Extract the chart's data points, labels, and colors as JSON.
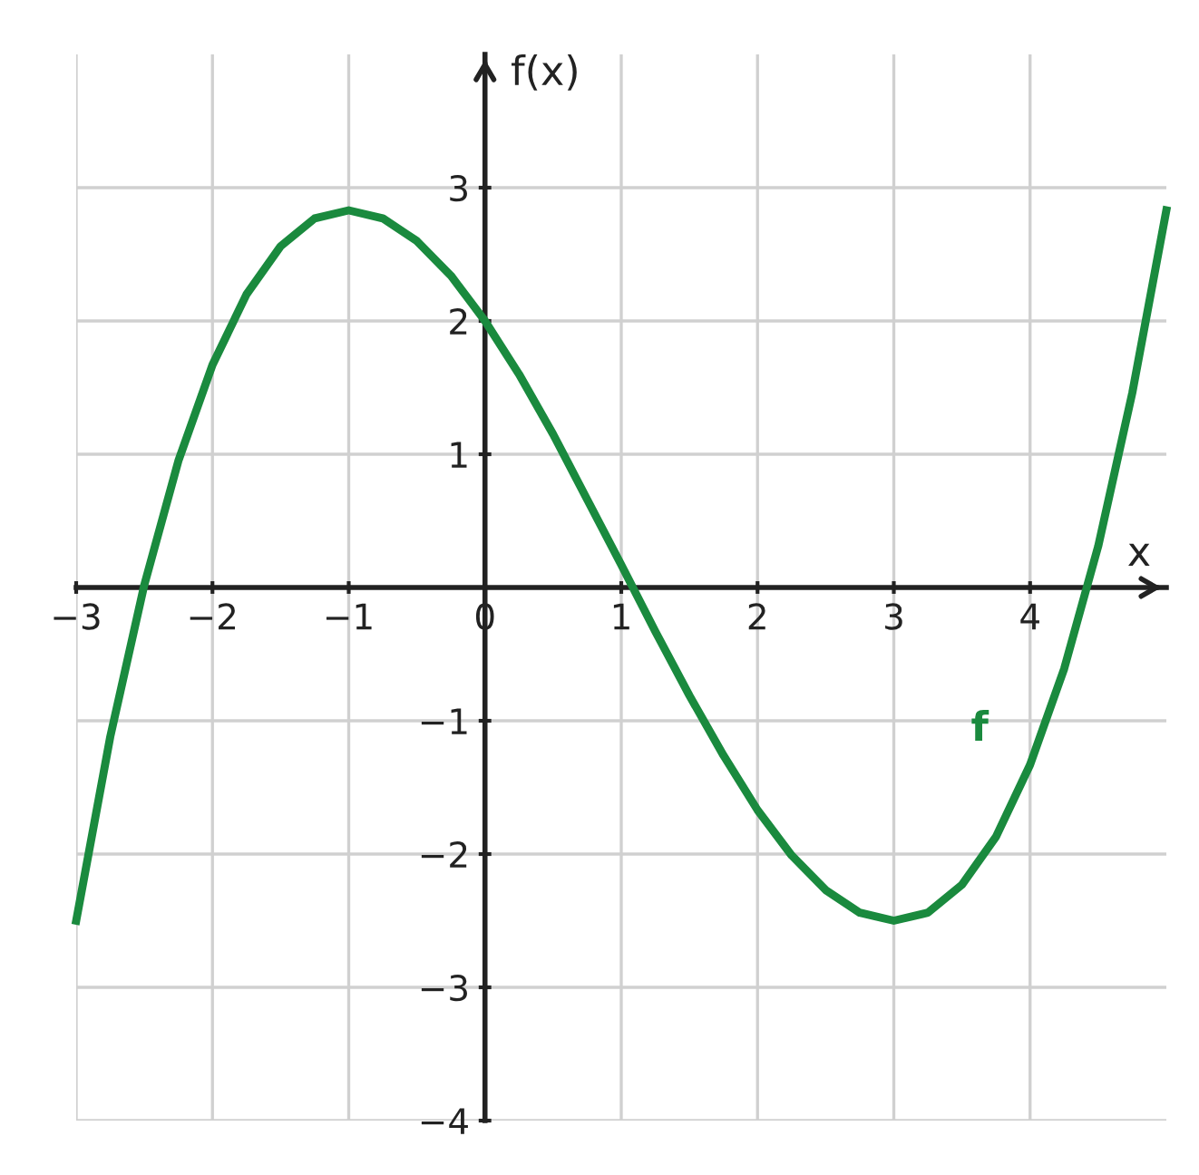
{
  "chart_data": {
    "type": "line",
    "xlabel": "x",
    "ylabel": "f(x)",
    "x": [
      -3,
      -2.75,
      -2.5,
      -2.25,
      -2,
      -1.75,
      -1.5,
      -1.25,
      -1,
      -0.75,
      -0.5,
      -0.25,
      0,
      0.25,
      0.5,
      0.75,
      1,
      1.25,
      1.5,
      1.75,
      2,
      2.25,
      2.5,
      2.75,
      3,
      3.25,
      3.5,
      3.75,
      4,
      4.25,
      4.5,
      4.75,
      5
    ],
    "series": [
      {
        "name": "f",
        "color": "#1a8a3e",
        "values": [
          -2.5,
          -1.12,
          0.02,
          0.95,
          1.67,
          2.2,
          2.56,
          2.77,
          2.83,
          2.77,
          2.6,
          2.34,
          2,
          1.6,
          1.15,
          0.66,
          0.17,
          -0.33,
          -0.81,
          -1.26,
          -1.67,
          -2.01,
          -2.27,
          -2.44,
          -2.5,
          -2.44,
          -2.23,
          -1.87,
          -1.33,
          -0.61,
          0.31,
          1.46,
          2.83
        ]
      }
    ],
    "xlim": [
      -3,
      5
    ],
    "ylim": [
      -4,
      4
    ],
    "xticks": [
      -3,
      -2,
      -1,
      0,
      1,
      2,
      3,
      4
    ],
    "yticks": [
      -4,
      -3,
      -2,
      -1,
      1,
      2,
      3
    ],
    "grid": true,
    "marker": "none",
    "line_style": "solid"
  }
}
